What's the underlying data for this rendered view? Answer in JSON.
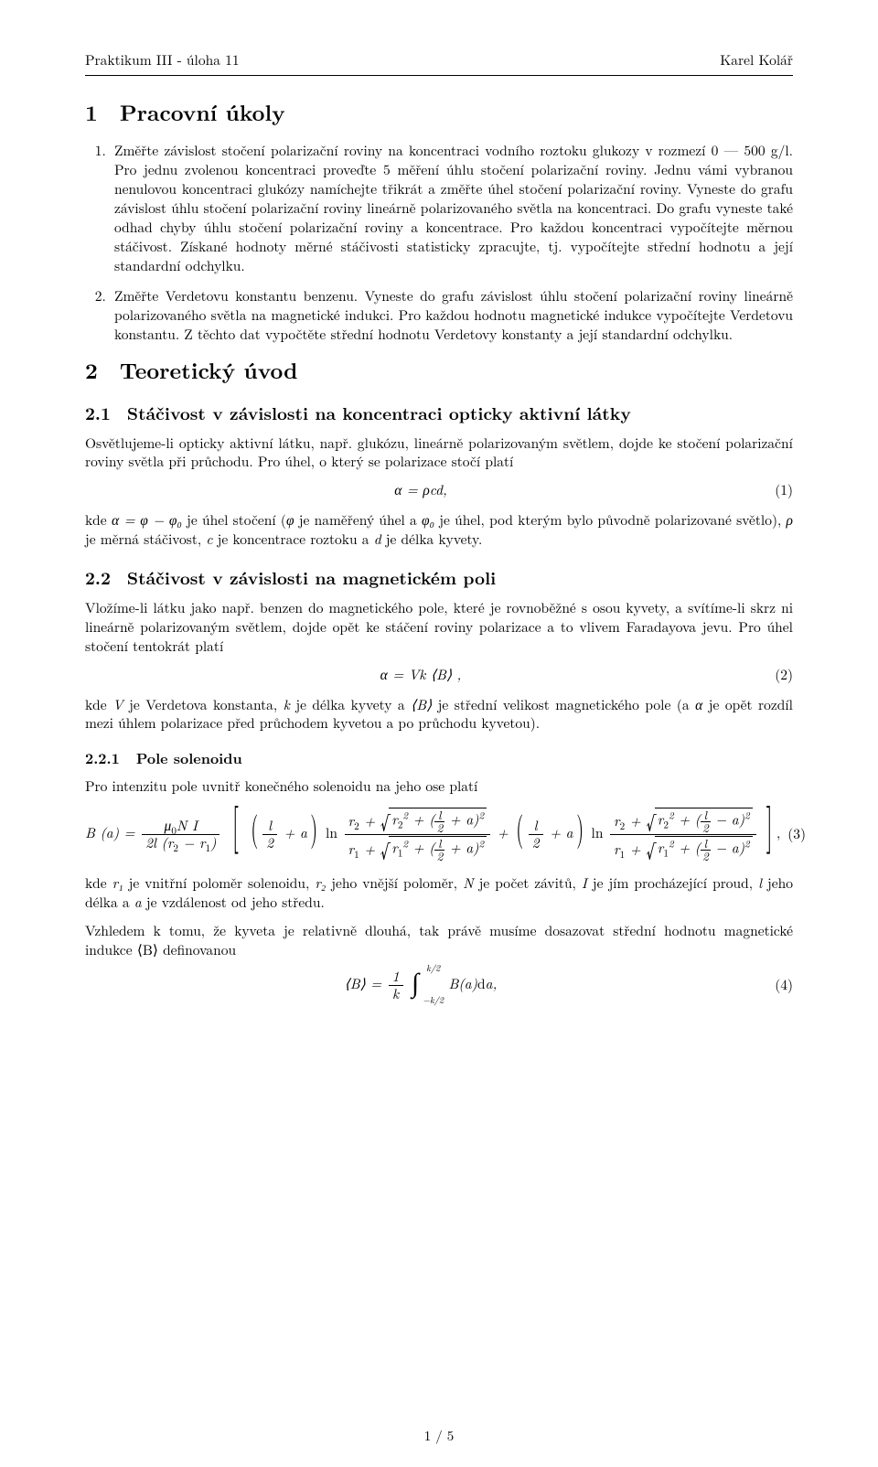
{
  "header": {
    "left": "Praktikum III - úloha 11",
    "right": "Karel Kolář"
  },
  "sec1": {
    "num": "1",
    "title": "Pracovní úkoly",
    "items": [
      "Změřte závislost stočení polarizační roviny na koncentraci vodního roztoku glukozy v rozmezí 0 — 500 g/l. Pro jednu zvolenou koncentraci proveďte 5 měření úhlu stočení polarizační roviny. Jednu vámi vybranou nenulovou koncentraci glukózy namíchejte třikrát a změřte úhel stočení polarizační roviny. Vyneste do grafu závislost úhlu stočení polarizační roviny lineárně polarizovaného světla na koncentraci. Do grafu vyneste také odhad chyby úhlu stočení polarizační roviny a koncentrace. Pro každou koncentraci vypočítejte měrnou stáčivost. Získané hodnoty měrné stáčivosti statisticky zpracujte, tj. vypočítejte střední hodnotu a její standardní odchylku.",
      "Změřte Verdetovu konstantu benzenu. Vyneste do grafu závislost úhlu stočení polarizační roviny lineárně polarizovaného světla na magnetické indukci. Pro každou hodnotu magnetické indukce vypočítejte Verdetovu konstantu. Z těchto dat vypočtěte střední hodnotu Verdetovy konstanty a její standardní odchylku."
    ]
  },
  "sec2": {
    "num": "2",
    "title": "Teoretický úvod",
    "sub21": {
      "num": "2.1",
      "title": "Stáčivost v závislosti na koncentraci opticky aktivní látky",
      "para1": "Osvětlujeme-li opticky aktivní látku, např. glukózu, lineárně polarizovaným světlem, dojde ke stočení polarizační roviny světla při průchodu. Pro úhel, o který se polarizace stočí platí",
      "eq1": {
        "body": "α = ρcd,",
        "num": "(1)"
      },
      "para2_a": "kde ",
      "para2_b": " je úhel stočení (",
      "para2_c": " je naměřený úhel a ",
      "para2_d": " je úhel, pod kterým bylo původně polarizované světlo), ",
      "para2_e": " je měrná stáčivost, ",
      "para2_f": " je koncentrace roztoku a ",
      "para2_g": " je délka kyvety.",
      "sym_alpha_eq": "α = φ − φ₀",
      "sym_phi": "φ",
      "sym_phi0": "φ₀",
      "sym_rho": "ρ",
      "sym_c": "c",
      "sym_d": "d"
    },
    "sub22": {
      "num": "2.2",
      "title": "Stáčivost v závislosti na magnetickém poli",
      "para1": "Vložíme-li látku jako např. benzen do magnetického pole, které je rovnoběžné s osou kyvety, a svítíme-li skrz ni lineárně polarizovaným světlem, dojde opět ke stáčení roviny polarizace a to vlivem Faradayova jevu. Pro úhel stočení tentokrát platí",
      "eq2": {
        "body": "α = Vk ⟨B⟩ ,",
        "num": "(2)"
      },
      "para2_a": "kde ",
      "para2_b": " je Verdetova konstanta, ",
      "para2_c": " je délka kyvety a ",
      "para2_d": " je střední velikost magnetického pole (a ",
      "para2_e": " je opět rozdíl mezi úhlem polarizace před průchodem kyvetou a po průchodu kyvetou).",
      "sym_V": "V",
      "sym_k": "k",
      "sym_B": "⟨B⟩",
      "sym_alpha": "α"
    },
    "sub221": {
      "num": "2.2.1",
      "title": "Pole solenoidu",
      "para1": "Pro intenzitu pole uvnitř konečného solenoidu na jeho ose platí",
      "eq3_num": "(3)",
      "para2_a": "kde ",
      "para2_b": " je vnitřní poloměr solenoidu, ",
      "para2_c": " jeho vnější poloměr, ",
      "para2_d": " je počet závitů, ",
      "para2_e": " je jím procházející proud, ",
      "para2_f": " jeho délka a ",
      "para2_g": " je vzdálenost od jeho středu.",
      "sym_r1": "r₁",
      "sym_r2": "r₂",
      "sym_N": "N",
      "sym_I": "I",
      "sym_l": "l",
      "sym_a": "a",
      "para3": "Vzhledem k tomu, že kyveta je relativně dlouhá, tak právě musíme dosazovat střední hodnotu magnetické indukce ⟨B⟩ definovanou",
      "eq4_num": "(4)"
    }
  },
  "footer": "1 / 5"
}
